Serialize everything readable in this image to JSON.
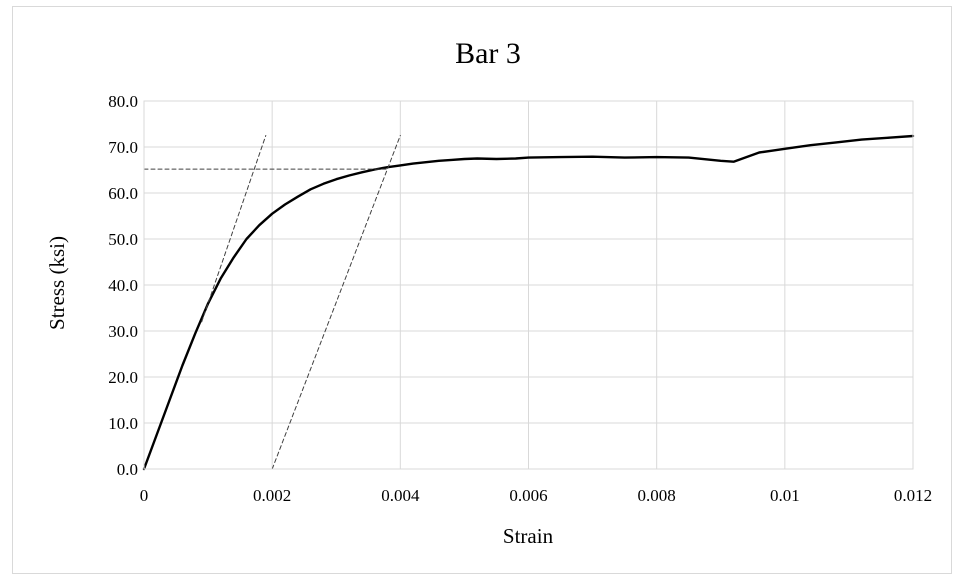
{
  "chart_data": {
    "type": "line",
    "title": "Bar 3",
    "xlabel": "Strain",
    "ylabel": "Stress (ksi)",
    "xlim": [
      0,
      0.012
    ],
    "ylim": [
      0,
      80
    ],
    "x_ticks": [
      0,
      0.002,
      0.004,
      0.006,
      0.008,
      0.01,
      0.012
    ],
    "x_tick_labels": [
      "0",
      "0.002",
      "0.004",
      "0.006",
      "0.008",
      "0.01",
      "0.012"
    ],
    "y_ticks": [
      0,
      10,
      20,
      30,
      40,
      50,
      60,
      70,
      80
    ],
    "y_tick_labels": [
      "0.0",
      "10.0",
      "20.0",
      "30.0",
      "40.0",
      "50.0",
      "60.0",
      "70.0",
      "80.0"
    ],
    "grid": true,
    "legend": "none",
    "colors": {
      "curve": "#000000",
      "grid": "#d9d9d9",
      "reference": "#404040"
    },
    "series": [
      {
        "style": "solid",
        "x": [
          0,
          0.0002,
          0.0004,
          0.0006,
          0.0008,
          0.001,
          0.0012,
          0.0014,
          0.0016,
          0.0018,
          0.002,
          0.0022,
          0.0024,
          0.0026,
          0.0028,
          0.003,
          0.0032,
          0.0034,
          0.0036,
          0.0038,
          0.004,
          0.0042,
          0.0044,
          0.0046,
          0.0048,
          0.005,
          0.0052,
          0.0055,
          0.0058,
          0.006,
          0.0065,
          0.007,
          0.0075,
          0.008,
          0.0085,
          0.009,
          0.0092,
          0.0094,
          0.0096,
          0.0098,
          0.01,
          0.0104,
          0.0108,
          0.0112,
          0.0116,
          0.012
        ],
        "y": [
          0,
          7.5,
          15,
          22.5,
          29.5,
          36,
          41.5,
          46,
          50,
          53,
          55.5,
          57.5,
          59.2,
          60.8,
          62,
          63,
          63.8,
          64.5,
          65.1,
          65.6,
          66.0,
          66.4,
          66.7,
          67.0,
          67.2,
          67.4,
          67.5,
          67.4,
          67.5,
          67.7,
          67.8,
          67.9,
          67.7,
          67.8,
          67.7,
          67.0,
          66.8,
          67.8,
          68.8,
          69.2,
          69.6,
          70.4,
          71.0,
          71.6,
          72.0,
          72.4
        ]
      },
      {
        "style": "dashed",
        "x": [
          0.0009,
          0.0019
        ],
        "y": [
          32,
          72.5
        ]
      },
      {
        "style": "dashed",
        "x": [
          0.002,
          0.004
        ],
        "y": [
          0,
          72.5
        ]
      },
      {
        "style": "dashed",
        "x": [
          0,
          0.0038
        ],
        "y": [
          65.2,
          65.2
        ]
      }
    ]
  }
}
